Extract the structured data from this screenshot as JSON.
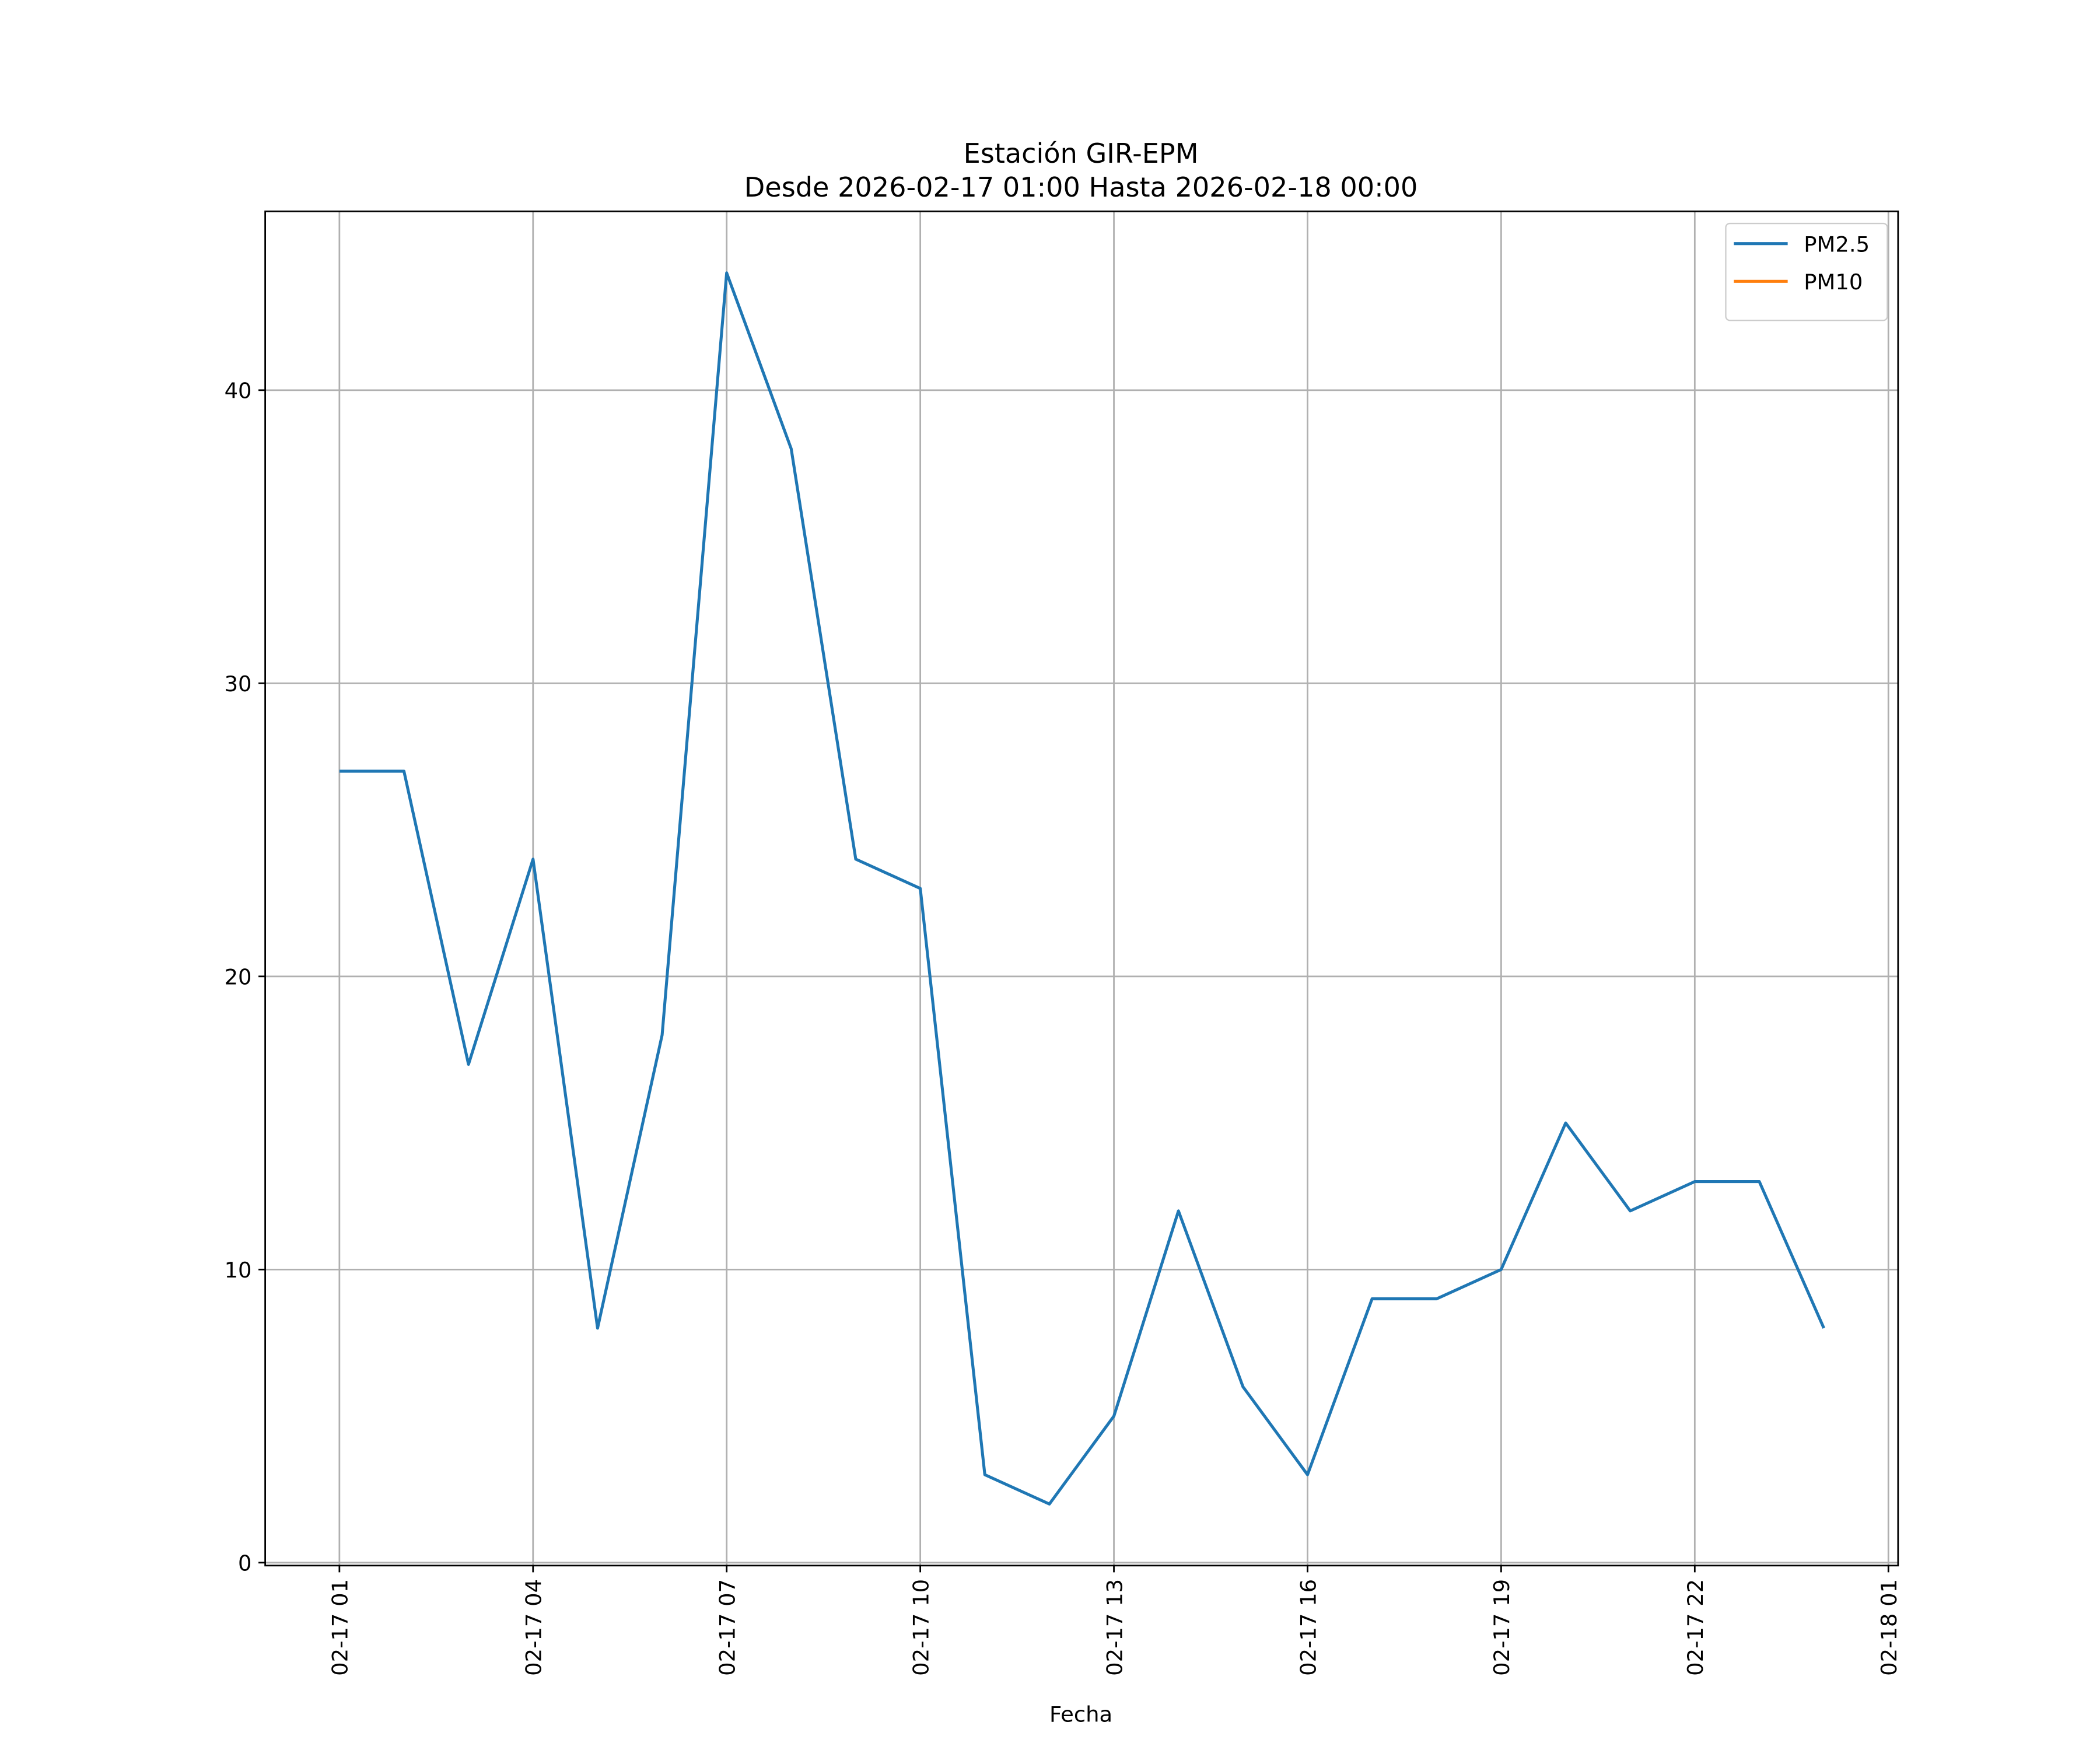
{
  "chart_data": {
    "type": "line",
    "title": "Estación GIR-EPM",
    "subtitle": "Desde 2026-02-17 01:00 Hasta 2026-02-18 00:00",
    "xlabel": "Fecha",
    "x": [
      "02-17 01:00",
      "02-17 02:00",
      "02-17 03:00",
      "02-17 04:00",
      "02-17 05:00",
      "02-17 06:00",
      "02-17 07:00",
      "02-17 08:00",
      "02-17 09:00",
      "02-17 10:00",
      "02-17 11:00",
      "02-17 12:00",
      "02-17 13:00",
      "02-17 14:00",
      "02-17 15:00",
      "02-17 16:00",
      "02-17 17:00",
      "02-17 18:00",
      "02-17 19:00",
      "02-17 20:00",
      "02-17 21:00",
      "02-17 22:00",
      "02-17 23:00",
      "02-18 00:00"
    ],
    "series": [
      {
        "name": "PM2.5",
        "color": "#1f77b4",
        "values": [
          27,
          27,
          17,
          24,
          8,
          18,
          44,
          38,
          24,
          23,
          3,
          2,
          5,
          12,
          6,
          3,
          9,
          9,
          10,
          15,
          12,
          13,
          13,
          8
        ]
      },
      {
        "name": "PM10",
        "color": "#ff7f0e",
        "values": [
          null,
          null,
          null,
          null,
          null,
          null,
          null,
          null,
          null,
          null,
          null,
          null,
          null,
          null,
          null,
          null,
          null,
          null,
          null,
          null,
          null,
          null,
          null,
          null
        ]
      }
    ],
    "xlim": [
      "02-16 23:51",
      "02-18 01:09"
    ],
    "xticks": [
      "02-17 01",
      "02-17 04",
      "02-17 07",
      "02-17 10",
      "02-17 13",
      "02-17 16",
      "02-17 19",
      "02-17 22",
      "02-18 01"
    ],
    "ylim": [
      -0.1,
      46.1
    ],
    "yticks": [
      0,
      10,
      20,
      30,
      40
    ],
    "grid": true,
    "legend": "upper right"
  }
}
